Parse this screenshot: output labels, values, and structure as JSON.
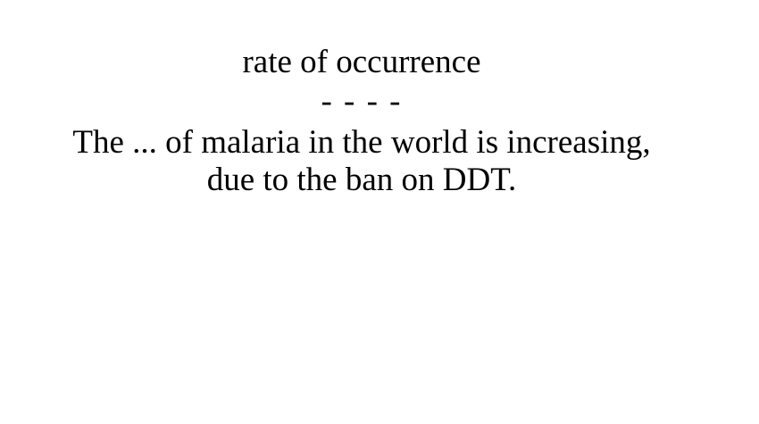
{
  "card": {
    "term": "rate of occurrence",
    "separator": "- - - -",
    "sentence_line_1": "The ... of malaria in the world is increasing,",
    "sentence_line_2": "due to the ban on DDT."
  }
}
